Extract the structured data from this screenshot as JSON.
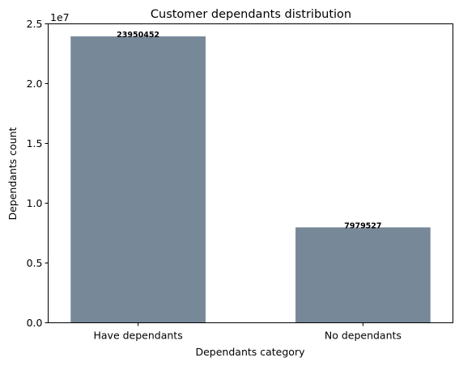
{
  "chart_data": {
    "type": "bar",
    "title": "Customer dependants distribution",
    "xlabel": "Dependants category",
    "ylabel": "Dependants count",
    "categories": [
      "Have dependants",
      "No dependants"
    ],
    "values": [
      23950452,
      7979527
    ],
    "data_labels": [
      "23950452",
      "7979527"
    ],
    "y_offset_label": "1e7",
    "y_scale": 10000000,
    "ylim": [
      0,
      25000000
    ],
    "yticks": [
      0,
      5000000,
      10000000,
      15000000,
      20000000,
      25000000
    ],
    "ytick_labels": [
      "0.0",
      "0.5",
      "1.0",
      "1.5",
      "2.0",
      "2.5"
    ],
    "bar_color": "#778899",
    "grid": false,
    "legend": "none"
  }
}
